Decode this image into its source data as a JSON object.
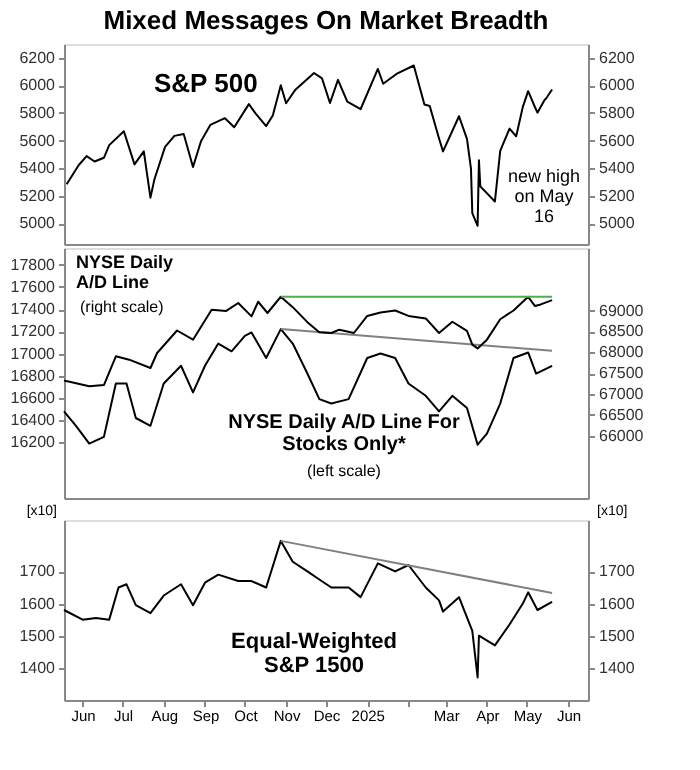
{
  "chart_data": [
    {
      "type": "line",
      "title": "Mixed Messages On Market Breadth",
      "xlim": [
        "2024-06-01",
        "2025-06-30"
      ],
      "tick_labels": "y",
      "grid": false,
      "ylim": [
        4850,
        6300
      ],
      "yticks": [
        5000,
        5200,
        5400,
        5600,
        5800,
        6000,
        6200
      ],
      "y2lim": [
        4850,
        6300
      ],
      "y2ticks": [
        5000,
        5200,
        5400,
        5600,
        5800,
        6000,
        6200
      ],
      "annotations": [
        "new high on May 16"
      ],
      "series": [
        {
          "name": "S&P 500",
          "color": "#000000",
          "x": [
            "2024-06-03",
            "2024-06-12",
            "2024-06-18",
            "2024-06-24",
            "2024-07-01",
            "2024-07-05",
            "2024-07-16",
            "2024-07-24",
            "2024-07-31",
            "2024-08-05",
            "2024-08-08",
            "2024-08-16",
            "2024-08-23",
            "2024-08-30",
            "2024-09-06",
            "2024-09-12",
            "2024-09-19",
            "2024-09-30",
            "2024-10-07",
            "2024-10-18",
            "2024-10-23",
            "2024-10-31",
            "2024-11-05",
            "2024-11-11",
            "2024-11-15",
            "2024-11-22",
            "2024-12-06",
            "2024-12-12",
            "2024-12-18",
            "2024-12-24",
            "2024-12-31",
            "2025-01-10",
            "2025-01-23",
            "2025-01-27",
            "2025-02-06",
            "2025-02-19",
            "2025-02-27",
            "2025-03-03",
            "2025-03-10",
            "2025-03-13",
            "2025-03-25",
            "2025-03-31",
            "2025-04-03",
            "2025-04-04",
            "2025-04-08",
            "2025-04-09",
            "2025-04-10",
            "2025-04-21",
            "2025-04-25",
            "2025-05-02",
            "2025-05-07",
            "2025-05-12",
            "2025-05-16",
            "2025-05-21",
            "2025-05-23",
            "2025-05-28",
            "2025-05-30",
            "2025-06-03"
          ],
          "values": [
            5283,
            5421,
            5487,
            5448,
            5475,
            5567,
            5667,
            5427,
            5522,
            5186,
            5319,
            5554,
            5634,
            5648,
            5408,
            5595,
            5713,
            5762,
            5696,
            5864,
            5797,
            5705,
            5782,
            6001,
            5870,
            5969,
            6090,
            6051,
            5872,
            6040,
            5882,
            5827,
            6119,
            6012,
            6083,
            6144,
            5861,
            5850,
            5615,
            5521,
            5776,
            5612,
            5397,
            5074,
            4982,
            5457,
            5268,
            5158,
            5525,
            5687,
            5631,
            5844,
            5958,
            5845,
            5802,
            5889,
            5912,
            5970
          ]
        }
      ]
    },
    {
      "type": "line",
      "xlim": [
        "2024-06-01",
        "2025-06-30"
      ],
      "tick_labels": "y",
      "grid": false,
      "ylim": [
        15700,
        17950
      ],
      "yticks": [
        16200,
        16400,
        16600,
        16800,
        17000,
        17200,
        17400,
        17600,
        17800
      ],
      "y2lim": [
        64500,
        70500
      ],
      "y2ticks": [
        66000,
        66500,
        67000,
        67500,
        68000,
        68500,
        69000
      ],
      "annotations": [
        "(left scale)",
        "(right scale)"
      ],
      "series": [
        {
          "name": "NYSE Daily A/D Line For Stocks Only*",
          "color": "#000000",
          "x": [
            "2024-06-01",
            "2024-06-10",
            "2024-06-20",
            "2024-07-01",
            "2024-07-10",
            "2024-07-18",
            "2024-07-25",
            "2024-08-05",
            "2024-08-15",
            "2024-08-28",
            "2024-09-06",
            "2024-09-15",
            "2024-09-25",
            "2024-10-05",
            "2024-10-15",
            "2024-10-20",
            "2024-10-31",
            "2024-11-11",
            "2024-11-20",
            "2024-12-01",
            "2024-12-10",
            "2024-12-19",
            "2025-01-01",
            "2025-01-15",
            "2025-01-25",
            "2025-02-05",
            "2025-02-15",
            "2025-02-28",
            "2025-03-10",
            "2025-03-20",
            "2025-03-31",
            "2025-04-08",
            "2025-04-15",
            "2025-04-25",
            "2025-05-05",
            "2025-05-16",
            "2025-05-22",
            "2025-06-03"
          ],
          "values": [
            16480,
            16350,
            16190,
            16250,
            16730,
            16730,
            16420,
            16350,
            16730,
            16890,
            16650,
            16890,
            17090,
            17020,
            17160,
            17190,
            16960,
            17220,
            17090,
            16820,
            16590,
            16550,
            16590,
            16960,
            17000,
            16960,
            16730,
            16620,
            16480,
            16620,
            16510,
            16180,
            16280,
            16550,
            16960,
            17010,
            16820,
            16890
          ]
        },
        {
          "name": "NYSE Daily A/D Line",
          "color": "#000000",
          "axis": "y2",
          "x": [
            "2024-06-01",
            "2024-06-20",
            "2024-07-01",
            "2024-07-10",
            "2024-07-20",
            "2024-08-05",
            "2024-08-10",
            "2024-08-25",
            "2024-09-06",
            "2024-09-20",
            "2024-10-01",
            "2024-10-10",
            "2024-10-20",
            "2024-10-25",
            "2024-11-01",
            "2024-11-11",
            "2024-11-20",
            "2024-12-01",
            "2024-12-10",
            "2024-12-19",
            "2024-12-25",
            "2025-01-05",
            "2025-01-15",
            "2025-01-25",
            "2025-02-05",
            "2025-02-15",
            "2025-02-28",
            "2025-03-10",
            "2025-03-20",
            "2025-03-31",
            "2025-04-04",
            "2025-04-08",
            "2025-04-15",
            "2025-04-25",
            "2025-05-05",
            "2025-05-16",
            "2025-05-21",
            "2025-05-25",
            "2025-06-03"
          ],
          "values": [
            67320,
            67180,
            67210,
            67900,
            67820,
            67620,
            67980,
            68520,
            68300,
            69020,
            68990,
            69180,
            68860,
            69210,
            68940,
            69330,
            69080,
            68720,
            68480,
            68460,
            68540,
            68460,
            68870,
            68950,
            69000,
            68870,
            68810,
            68460,
            68730,
            68510,
            68180,
            68090,
            68300,
            68790,
            69000,
            69330,
            69110,
            69140,
            69250
          ]
        },
        {
          "color": "#4caf50",
          "axis": "y2",
          "x": [
            "2024-11-11",
            "2025-06-03"
          ],
          "values": [
            69330,
            69330
          ]
        },
        {
          "color": "#808080",
          "x": [
            "2024-11-11",
            "2025-06-03"
          ],
          "values": [
            17220,
            17025
          ]
        }
      ]
    },
    {
      "type": "line",
      "xlim": [
        "2024-06-01",
        "2025-06-30"
      ],
      "grid": false,
      "ylabel": "[x10]",
      "y2label": "[x10]",
      "ylim": [
        1300,
        1860
      ],
      "yticks": [
        1400,
        1500,
        1600,
        1700
      ],
      "y2lim": [
        1300,
        1860
      ],
      "y2ticks": [
        1400,
        1500,
        1600,
        1700
      ],
      "xticks": [
        {
          "value": "2024-06-15",
          "label": "Jun"
        },
        {
          "value": "2024-07-15",
          "label": "Jul"
        },
        {
          "value": "2024-08-15",
          "label": "Aug"
        },
        {
          "value": "2024-09-15",
          "label": "Sep"
        },
        {
          "value": "2024-10-15",
          "label": "Oct"
        },
        {
          "value": "2024-11-15",
          "label": "Nov"
        },
        {
          "value": "2024-12-15",
          "label": "Dec"
        },
        {
          "value": "2025-01-15",
          "label": "2025"
        },
        {
          "value": "2025-02-15",
          "label": null
        },
        {
          "value": "2025-03-15",
          "label": "Mar"
        },
        {
          "value": "2025-04-15",
          "label": "Apr"
        },
        {
          "value": "2025-05-15",
          "label": "May"
        },
        {
          "value": "2025-06-15",
          "label": "Jun"
        }
      ],
      "series": [
        {
          "name": "Equal-Weighted S&P 1500",
          "color": "#000000",
          "x": [
            "2024-06-01",
            "2024-06-15",
            "2024-06-25",
            "2024-07-05",
            "2024-07-12",
            "2024-07-18",
            "2024-07-25",
            "2024-08-05",
            "2024-08-15",
            "2024-08-28",
            "2024-09-06",
            "2024-09-15",
            "2024-09-25",
            "2024-10-10",
            "2024-10-20",
            "2024-10-31",
            "2024-11-11",
            "2024-11-20",
            "2024-12-01",
            "2024-12-10",
            "2024-12-19",
            "2025-01-01",
            "2025-01-10",
            "2025-01-23",
            "2025-02-05",
            "2025-02-15",
            "2025-02-28",
            "2025-03-10",
            "2025-03-13",
            "2025-03-25",
            "2025-04-04",
            "2025-04-08",
            "2025-04-09",
            "2025-04-21",
            "2025-05-02",
            "2025-05-12",
            "2025-05-16",
            "2025-05-23",
            "2025-06-03"
          ],
          "values": [
            1580,
            1550,
            1555,
            1550,
            1650,
            1660,
            1595,
            1570,
            1625,
            1660,
            1595,
            1665,
            1690,
            1670,
            1670,
            1650,
            1795,
            1730,
            1700,
            1675,
            1650,
            1650,
            1620,
            1725,
            1700,
            1720,
            1650,
            1610,
            1575,
            1620,
            1515,
            1370,
            1500,
            1470,
            1535,
            1600,
            1635,
            1580,
            1605
          ]
        },
        {
          "color": "#808080",
          "x": [
            "2024-11-11",
            "2025-06-03"
          ],
          "values": [
            1795,
            1633
          ]
        }
      ]
    }
  ]
}
